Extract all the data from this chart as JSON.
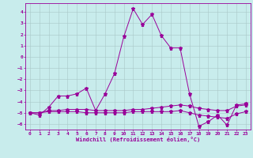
{
  "xlabel": "Windchill (Refroidissement éolien,°C)",
  "background_color": "#c8ecec",
  "grid_color": "#a8c8c8",
  "line_color": "#990099",
  "xlim": [
    -0.5,
    23.5
  ],
  "ylim": [
    -6.5,
    4.8
  ],
  "yticks": [
    4,
    3,
    2,
    1,
    0,
    -1,
    -2,
    -3,
    -4,
    -5,
    -6
  ],
  "xticks": [
    0,
    1,
    2,
    3,
    4,
    5,
    6,
    7,
    8,
    9,
    10,
    11,
    12,
    13,
    14,
    15,
    16,
    17,
    18,
    19,
    20,
    21,
    22,
    23
  ],
  "series1_x": [
    0,
    1,
    2,
    3,
    4,
    5,
    6,
    7,
    8,
    9,
    10,
    11,
    12,
    13,
    14,
    15,
    16,
    17,
    18,
    19,
    20,
    21,
    22,
    23
  ],
  "series1_y": [
    -5.0,
    -5.2,
    -4.5,
    -3.5,
    -3.5,
    -3.3,
    -2.8,
    -4.8,
    -3.3,
    -1.5,
    1.8,
    4.3,
    2.9,
    3.8,
    1.9,
    0.8,
    0.8,
    -3.3,
    -6.2,
    -5.8,
    -5.2,
    -6.1,
    -4.3,
    -4.2
  ],
  "series2_x": [
    0,
    1,
    2,
    3,
    4,
    5,
    6,
    7,
    8,
    9,
    10,
    11,
    12,
    13,
    14,
    15,
    16,
    17,
    18,
    19,
    20,
    21,
    22,
    23
  ],
  "series2_y": [
    -5.0,
    -5.0,
    -4.8,
    -4.8,
    -4.7,
    -4.7,
    -4.7,
    -4.8,
    -4.8,
    -4.8,
    -4.8,
    -4.7,
    -4.7,
    -4.6,
    -4.5,
    -4.4,
    -4.3,
    -4.4,
    -4.6,
    -4.7,
    -4.8,
    -4.8,
    -4.4,
    -4.3
  ],
  "series3_x": [
    0,
    1,
    2,
    3,
    4,
    5,
    6,
    7,
    8,
    9,
    10,
    11,
    12,
    13,
    14,
    15,
    16,
    17,
    18,
    19,
    20,
    21,
    22,
    23
  ],
  "series3_y": [
    -5.0,
    -5.0,
    -4.9,
    -4.9,
    -4.9,
    -4.9,
    -5.0,
    -5.0,
    -5.0,
    -5.0,
    -5.0,
    -4.9,
    -4.9,
    -4.9,
    -4.9,
    -4.9,
    -4.8,
    -5.0,
    -5.2,
    -5.3,
    -5.4,
    -5.5,
    -5.1,
    -4.9
  ],
  "tick_fontsize": 4.5,
  "xlabel_fontsize": 5.0,
  "marker_size": 2.0,
  "line_width": 0.7
}
